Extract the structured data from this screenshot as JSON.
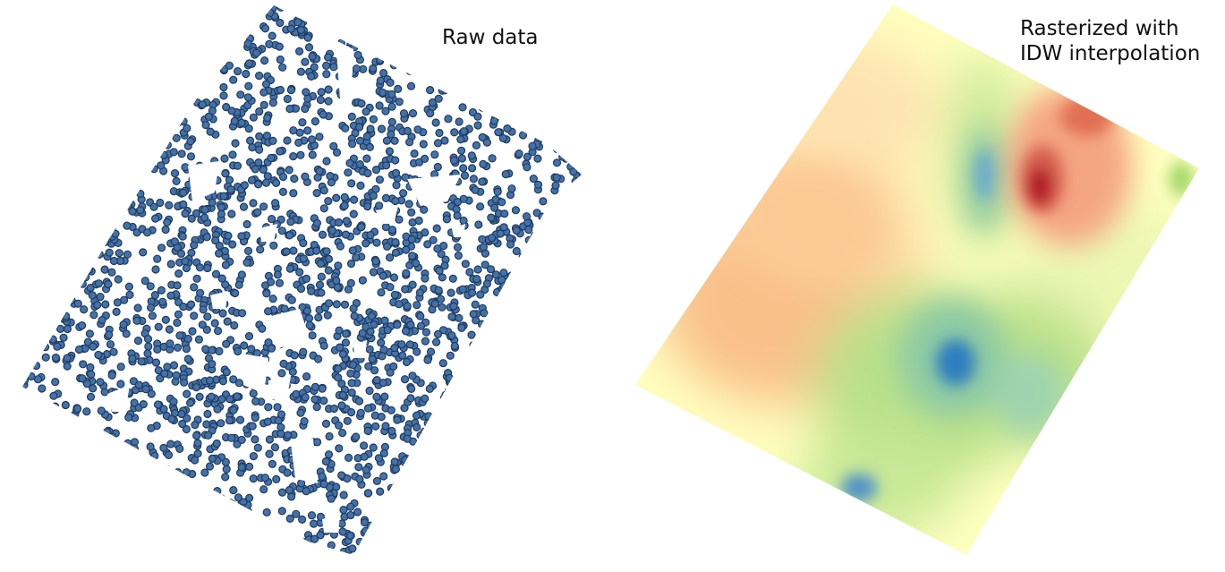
{
  "panels": [
    {
      "title": "Raw data",
      "kind": "point-cloud",
      "point_fill": "#4472a8",
      "point_stroke": "#1f3a5f"
    },
    {
      "title_lines": [
        "Rasterized with",
        "IDW interpolation"
      ],
      "kind": "interpolated-raster",
      "colormap": "RdYlBu-spectral",
      "colors": {
        "low_blue": "#2166ac",
        "mid_blue": "#67a9cf",
        "green": "#a6d96a",
        "pale_green": "#d9ef8b",
        "pale_yellow": "#ffffbf",
        "peach": "#fdd49e",
        "orange": "#f4a582",
        "red": "#d6604d",
        "dark_red": "#b2182b"
      }
    }
  ]
}
